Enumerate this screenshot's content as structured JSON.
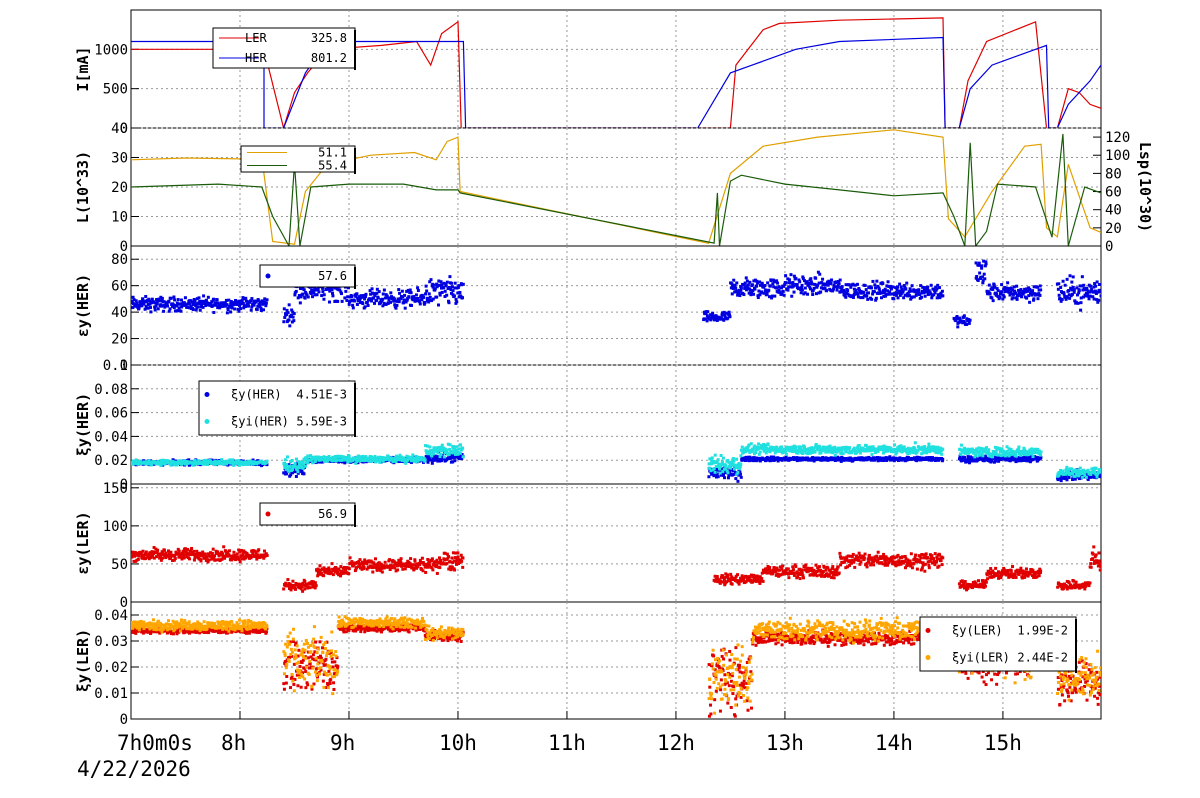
{
  "date_label": "4/22/2026",
  "x_axis": {
    "range_hours": [
      7.0,
      15.9
    ],
    "ticks": [
      {
        "t": 7,
        "label": "7h0m0s"
      },
      {
        "t": 8,
        "label": "8h"
      },
      {
        "t": 9,
        "label": "9h"
      },
      {
        "t": 10,
        "label": "10h"
      },
      {
        "t": 11,
        "label": "11h"
      },
      {
        "t": 12,
        "label": "12h"
      },
      {
        "t": 13,
        "label": "13h"
      },
      {
        "t": 14,
        "label": "14h"
      },
      {
        "t": 15,
        "label": "15h"
      }
    ]
  },
  "colors": {
    "ler": "#e00000",
    "her": "#0000e0",
    "lum": "#1a5c0a",
    "lsp": "#e0a000",
    "cyan": "#20e0e0",
    "orange": "#ffa500"
  },
  "chart_data": [
    {
      "id": "current",
      "type": "line",
      "ylabel": "I[mA]",
      "ylim": [
        0,
        1500
      ],
      "yticks": [
        0,
        500,
        1000
      ],
      "legend": [
        {
          "label": "LER",
          "value": "325.8",
          "color": "#e00000"
        },
        {
          "label": "HER",
          "value": "801.2",
          "color": "#0000e0"
        }
      ],
      "series": [
        {
          "name": "LER",
          "color": "#e00000",
          "points": [
            [
              7.0,
              1000
            ],
            [
              8.22,
              1000
            ],
            [
              8.4,
              0
            ],
            [
              8.5,
              450
            ],
            [
              8.62,
              700
            ],
            [
              8.8,
              1000
            ],
            [
              9.3,
              1050
            ],
            [
              9.62,
              1100
            ],
            [
              9.75,
              800
            ],
            [
              9.85,
              1200
            ],
            [
              10.0,
              1350
            ],
            [
              10.03,
              0
            ],
            [
              12.5,
              0
            ],
            [
              12.55,
              800
            ],
            [
              12.8,
              1250
            ],
            [
              12.95,
              1330
            ],
            [
              13.5,
              1370
            ],
            [
              14.45,
              1400
            ],
            [
              14.47,
              0
            ],
            [
              14.6,
              0
            ],
            [
              14.68,
              600
            ],
            [
              14.85,
              1100
            ],
            [
              15.3,
              1350
            ],
            [
              15.4,
              0
            ],
            [
              15.5,
              0
            ],
            [
              15.6,
              500
            ],
            [
              15.7,
              450
            ],
            [
              15.8,
              300
            ],
            [
              15.9,
              250
            ]
          ]
        },
        {
          "name": "HER",
          "color": "#0000e0",
          "points": [
            [
              7.0,
              1100
            ],
            [
              8.22,
              1100
            ],
            [
              8.22,
              0
            ],
            [
              8.4,
              0
            ],
            [
              8.6,
              700
            ],
            [
              8.8,
              1100
            ],
            [
              10.05,
              1100
            ],
            [
              10.07,
              0
            ],
            [
              12.2,
              0
            ],
            [
              12.5,
              700
            ],
            [
              12.7,
              800
            ],
            [
              13.1,
              1000
            ],
            [
              13.5,
              1100
            ],
            [
              14.45,
              1150
            ],
            [
              14.47,
              0
            ],
            [
              14.6,
              0
            ],
            [
              14.7,
              500
            ],
            [
              14.9,
              800
            ],
            [
              15.3,
              1000
            ],
            [
              15.4,
              1050
            ],
            [
              15.42,
              0
            ],
            [
              15.5,
              0
            ],
            [
              15.6,
              300
            ],
            [
              15.8,
              600
            ],
            [
              15.9,
              800
            ]
          ]
        }
      ]
    },
    {
      "id": "luminosity",
      "type": "line",
      "ylabel": "L(10^33)",
      "ylim": [
        0,
        40
      ],
      "yticks": [
        0,
        10,
        20,
        30,
        40
      ],
      "right_axis": {
        "ylabel": "Lsp(10^30)",
        "ylim": [
          0,
          130
        ],
        "yticks": [
          0,
          20,
          40,
          60,
          80,
          100,
          120
        ]
      },
      "legend": [
        {
          "label": "",
          "value": "51.1",
          "color": "#e0a000"
        },
        {
          "label": "",
          "value": "55.4",
          "color": "#1a5c0a"
        }
      ],
      "series": [
        {
          "name": "Lsp",
          "axis": "right",
          "color": "#e0a000",
          "points": [
            [
              7.0,
              95
            ],
            [
              7.5,
              97
            ],
            [
              8.0,
              96
            ],
            [
              8.2,
              98
            ],
            [
              8.3,
              5
            ],
            [
              8.5,
              2
            ],
            [
              8.6,
              60
            ],
            [
              8.8,
              90
            ],
            [
              9.2,
              100
            ],
            [
              9.6,
              103
            ],
            [
              9.8,
              95
            ],
            [
              9.9,
              115
            ],
            [
              10.0,
              120
            ],
            [
              10.02,
              60
            ],
            [
              12.3,
              3
            ],
            [
              12.5,
              80
            ],
            [
              12.8,
              110
            ],
            [
              13.3,
              120
            ],
            [
              14.0,
              128
            ],
            [
              14.45,
              120
            ],
            [
              14.5,
              30
            ],
            [
              14.65,
              10
            ],
            [
              14.8,
              40
            ],
            [
              14.9,
              60
            ],
            [
              15.2,
              110
            ],
            [
              15.35,
              112
            ],
            [
              15.4,
              20
            ],
            [
              15.5,
              10
            ],
            [
              15.6,
              90
            ],
            [
              15.8,
              20
            ],
            [
              15.9,
              15
            ]
          ]
        },
        {
          "name": "L",
          "axis": "left",
          "color": "#1a5c0a",
          "points": [
            [
              7.0,
              20
            ],
            [
              7.8,
              21
            ],
            [
              8.2,
              20
            ],
            [
              8.3,
              10
            ],
            [
              8.45,
              0
            ],
            [
              8.5,
              28
            ],
            [
              8.55,
              0
            ],
            [
              8.65,
              20
            ],
            [
              9.0,
              21
            ],
            [
              9.5,
              21
            ],
            [
              9.8,
              19
            ],
            [
              10.0,
              19
            ],
            [
              10.02,
              18
            ],
            [
              12.35,
              1
            ],
            [
              12.38,
              18
            ],
            [
              12.4,
              0
            ],
            [
              12.5,
              22
            ],
            [
              12.6,
              24
            ],
            [
              13.0,
              21
            ],
            [
              13.5,
              19
            ],
            [
              14.0,
              17
            ],
            [
              14.45,
              18
            ],
            [
              14.55,
              10
            ],
            [
              14.65,
              0
            ],
            [
              14.7,
              35
            ],
            [
              14.75,
              0
            ],
            [
              14.85,
              5
            ],
            [
              14.95,
              21
            ],
            [
              15.3,
              20
            ],
            [
              15.45,
              3
            ],
            [
              15.55,
              38
            ],
            [
              15.6,
              0
            ],
            [
              15.75,
              20
            ],
            [
              15.9,
              18
            ]
          ]
        }
      ]
    },
    {
      "id": "emit_her",
      "type": "scatter",
      "ylabel": "εy(HER)",
      "ylim": [
        0,
        90
      ],
      "yticks": [
        0,
        20,
        40,
        60,
        80
      ],
      "legend": [
        {
          "label": "",
          "value": "57.6",
          "color": "#0000e0"
        }
      ],
      "series": [
        {
          "name": "εy(HER)",
          "color": "#0000e0",
          "segments": [
            [
              7.0,
              8.25,
              46,
              4
            ],
            [
              8.4,
              8.5,
              38,
              5
            ],
            [
              8.5,
              9.0,
              58,
              7
            ],
            [
              9.0,
              9.7,
              50,
              5
            ],
            [
              9.7,
              10.05,
              55,
              8
            ],
            [
              12.25,
              12.5,
              36,
              3
            ],
            [
              12.5,
              13.0,
              58,
              6
            ],
            [
              13.0,
              13.5,
              60,
              6
            ],
            [
              13.5,
              14.45,
              56,
              5
            ],
            [
              14.55,
              14.7,
              33,
              3
            ],
            [
              14.75,
              14.85,
              70,
              10
            ],
            [
              14.85,
              15.35,
              55,
              5
            ],
            [
              15.5,
              15.9,
              55,
              8
            ]
          ]
        }
      ]
    },
    {
      "id": "xi_her",
      "type": "scatter",
      "ylabel": "ξy(HER)",
      "ylim": [
        0,
        0.1
      ],
      "yticks": [
        0,
        0.02,
        0.04,
        0.06,
        0.08,
        0.1
      ],
      "legend": [
        {
          "label": "ξy(HER)",
          "value": "4.51E-3",
          "color": "#0000e0"
        },
        {
          "label": "ξyi(HER)",
          "value": "5.59E-3",
          "color": "#20e0e0"
        }
      ],
      "series": [
        {
          "name": "ξy(HER)",
          "color": "#0000e0",
          "segments": [
            [
              7.0,
              8.25,
              0.018,
              0.0015
            ],
            [
              8.4,
              8.6,
              0.012,
              0.004
            ],
            [
              8.6,
              9.7,
              0.02,
              0.0015
            ],
            [
              9.7,
              10.05,
              0.022,
              0.003
            ],
            [
              12.3,
              12.6,
              0.01,
              0.005
            ],
            [
              12.6,
              14.45,
              0.021,
              0.0012
            ],
            [
              14.6,
              15.35,
              0.021,
              0.002
            ],
            [
              15.5,
              15.9,
              0.007,
              0.003
            ]
          ]
        },
        {
          "name": "ξyi(HER)",
          "color": "#20e0e0",
          "segments": [
            [
              7.0,
              8.25,
              0.018,
              0.0015
            ],
            [
              8.4,
              8.6,
              0.016,
              0.004
            ],
            [
              8.6,
              9.7,
              0.021,
              0.002
            ],
            [
              9.7,
              10.05,
              0.028,
              0.004
            ],
            [
              12.3,
              12.6,
              0.016,
              0.006
            ],
            [
              12.6,
              14.45,
              0.029,
              0.003
            ],
            [
              14.6,
              15.35,
              0.027,
              0.003
            ],
            [
              15.5,
              15.9,
              0.01,
              0.003
            ]
          ]
        }
      ]
    },
    {
      "id": "emit_ler",
      "type": "scatter",
      "ylabel": "εy(LER)",
      "ylim": [
        0,
        155
      ],
      "yticks": [
        0,
        50,
        100,
        150
      ],
      "legend": [
        {
          "label": "",
          "value": "56.9",
          "color": "#e00000"
        }
      ],
      "series": [
        {
          "name": "εy(LER)",
          "color": "#e00000",
          "segments": [
            [
              7.0,
              8.25,
              62,
              6
            ],
            [
              8.4,
              8.7,
              22,
              5
            ],
            [
              8.7,
              9.0,
              40,
              6
            ],
            [
              9.0,
              9.8,
              48,
              6
            ],
            [
              9.8,
              10.05,
              55,
              10
            ],
            [
              12.35,
              12.8,
              30,
              5
            ],
            [
              12.8,
              13.5,
              40,
              6
            ],
            [
              13.5,
              14.45,
              55,
              8
            ],
            [
              14.6,
              14.85,
              22,
              4
            ],
            [
              14.85,
              15.35,
              38,
              5
            ],
            [
              15.5,
              15.8,
              22,
              5
            ],
            [
              15.8,
              15.9,
              55,
              12
            ]
          ]
        }
      ]
    },
    {
      "id": "xi_ler",
      "type": "scatter",
      "ylabel": "ξy(LER)",
      "ylim": [
        0,
        0.045
      ],
      "yticks": [
        0,
        0.01,
        0.02,
        0.03,
        0.04
      ],
      "legend": [
        {
          "label": "ξy(LER)",
          "value": "1.99E-2",
          "color": "#e00000"
        },
        {
          "label": "ξyi(LER)",
          "value": "2.44E-2",
          "color": "#ffa500"
        }
      ],
      "series": [
        {
          "name": "ξy(LER)",
          "color": "#e00000",
          "segments": [
            [
              7.0,
              8.25,
              0.034,
              0.0008
            ],
            [
              8.4,
              8.9,
              0.02,
              0.008
            ],
            [
              8.9,
              9.7,
              0.035,
              0.001
            ],
            [
              9.7,
              10.05,
              0.032,
              0.0015
            ],
            [
              12.3,
              12.7,
              0.015,
              0.01
            ],
            [
              12.7,
              14.45,
              0.031,
              0.002
            ],
            [
              14.6,
              15.3,
              0.022,
              0.006
            ],
            [
              15.5,
              15.9,
              0.014,
              0.006
            ]
          ]
        },
        {
          "name": "ξyi(LER)",
          "color": "#ffa500",
          "segments": [
            [
              7.0,
              8.25,
              0.036,
              0.0015
            ],
            [
              8.4,
              8.9,
              0.022,
              0.008
            ],
            [
              8.9,
              9.7,
              0.037,
              0.0015
            ],
            [
              9.7,
              10.05,
              0.033,
              0.002
            ],
            [
              12.3,
              12.7,
              0.016,
              0.01
            ],
            [
              12.7,
              14.45,
              0.034,
              0.003
            ],
            [
              14.6,
              15.3,
              0.024,
              0.006
            ],
            [
              15.5,
              15.9,
              0.016,
              0.006
            ]
          ]
        }
      ]
    }
  ]
}
